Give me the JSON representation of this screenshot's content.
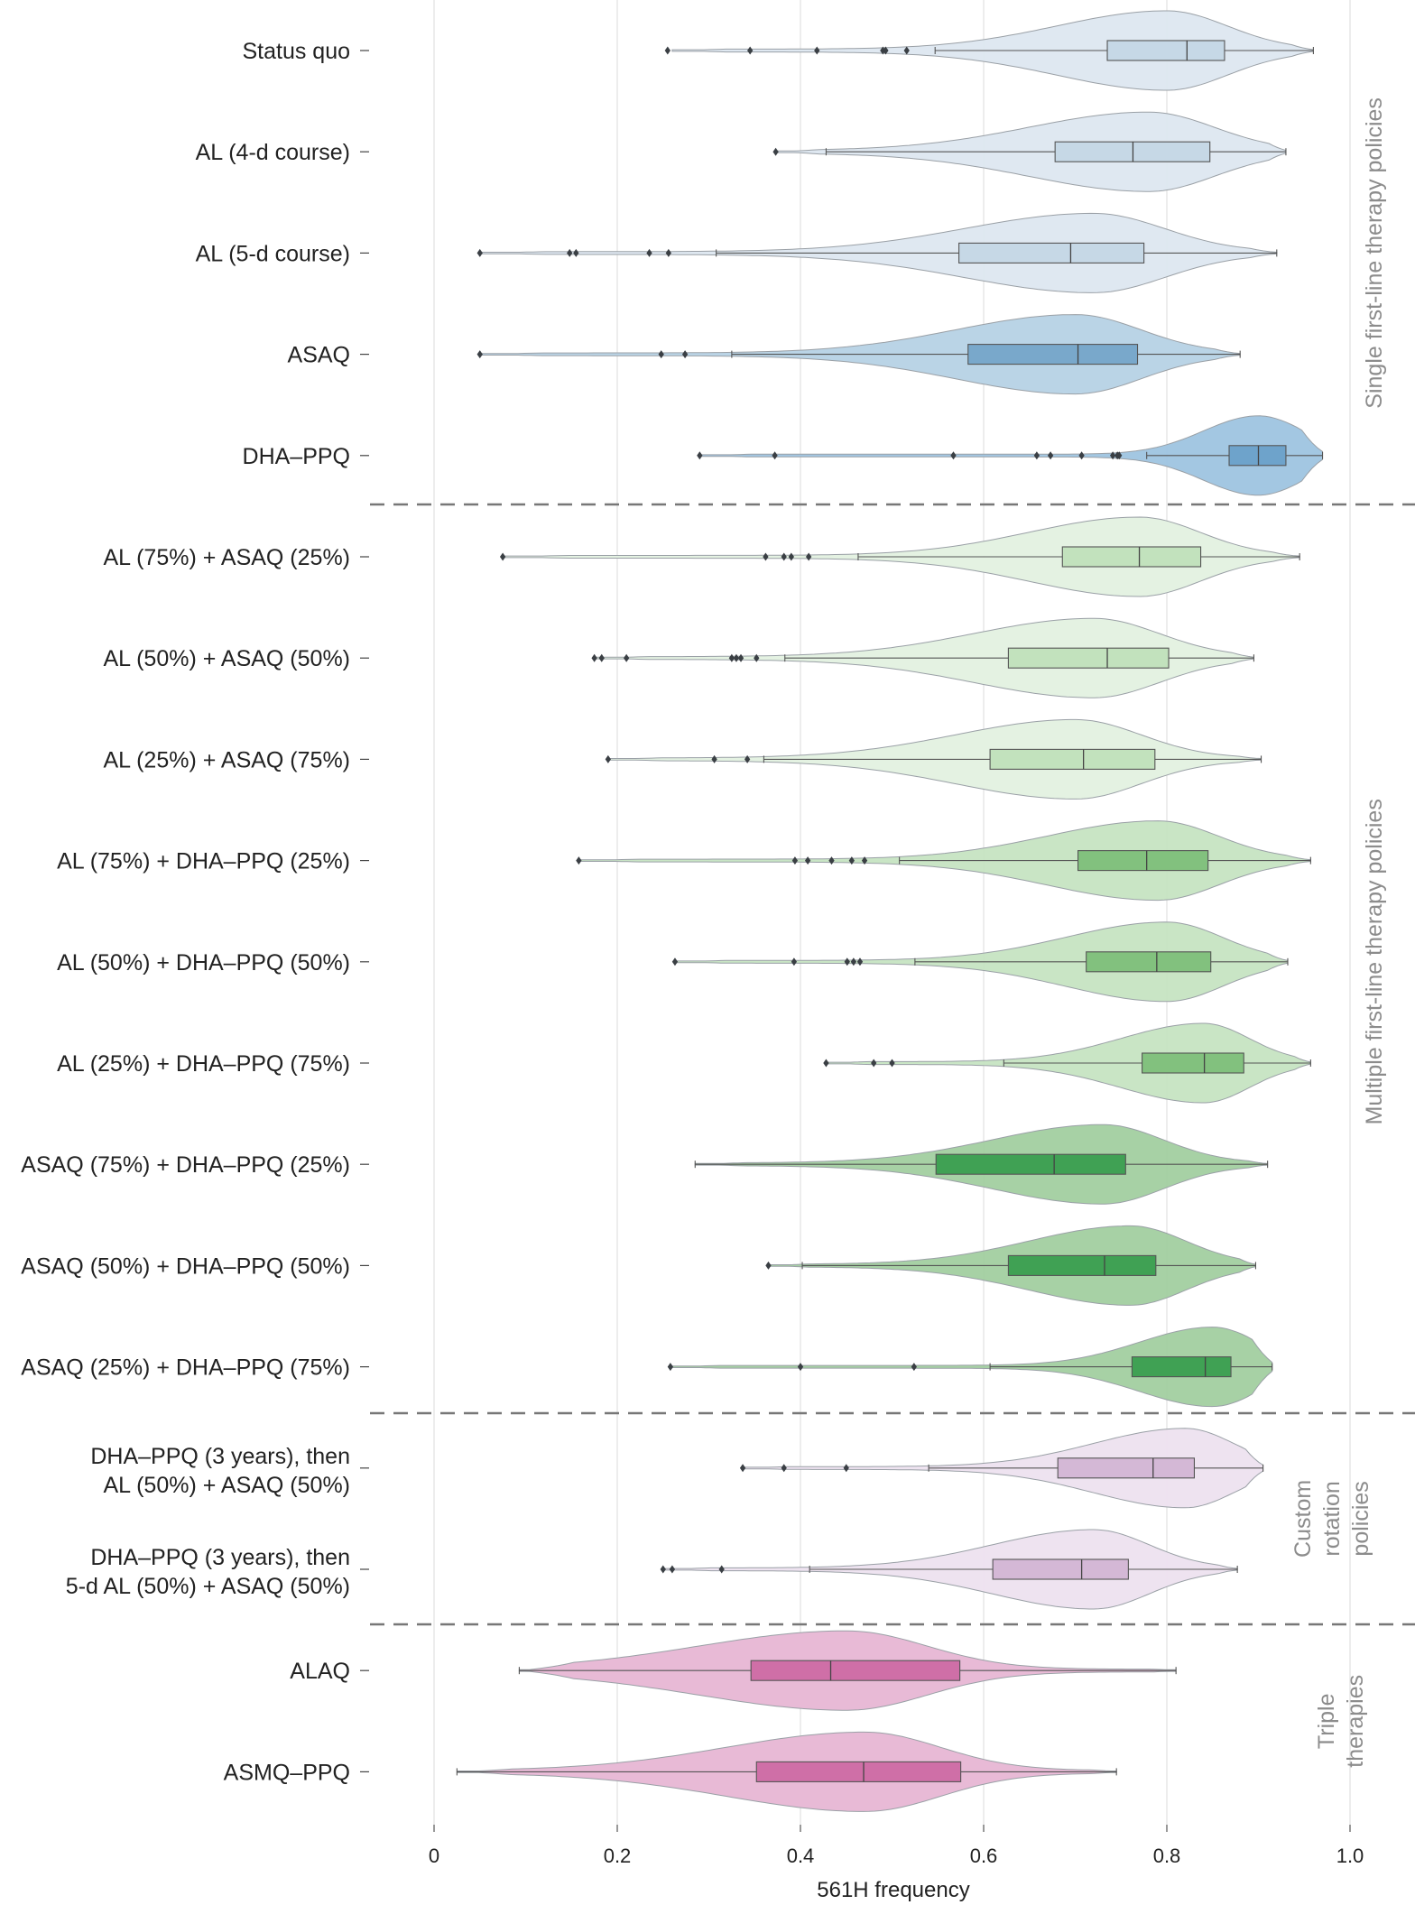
{
  "chart_data": {
    "type": "violin",
    "xlabel": "561H frequency",
    "xlim": [
      0,
      1.0
    ],
    "xticks": [
      0,
      0.2,
      0.4,
      0.6,
      0.8,
      1.0
    ],
    "xtick_labels": [
      "0",
      "0.2",
      "0.4",
      "0.6",
      "0.8",
      "1.0"
    ],
    "grid": "vertical",
    "groups": [
      {
        "name": "Single first-line therapy policies",
        "lines": [
          "Single first-line therapy policies"
        ],
        "first": 0,
        "last": 4
      },
      {
        "name": "Multiple first-line therapy policies",
        "lines": [
          "Multiple first-line therapy policies"
        ],
        "first": 5,
        "last": 13
      },
      {
        "name": "Custom rotation policies",
        "lines": [
          "Custom",
          "rotation",
          "policies"
        ],
        "first": 14,
        "last": 15
      },
      {
        "name": "Triple therapies",
        "lines": [
          "Triple",
          "therapies"
        ],
        "first": 16,
        "last": 17
      }
    ],
    "series": [
      {
        "label": [
          "Status quo"
        ],
        "fill": "#dde7f0",
        "box": "#c6d8e6",
        "min": 0.26,
        "q1": 0.735,
        "median": 0.822,
        "q3": 0.863,
        "max": 0.96,
        "whisker_low": 0.547,
        "outliers": [
          0.255,
          0.345,
          0.418,
          0.49,
          0.493,
          0.516
        ],
        "density_peak": 0.8,
        "spread": 0.12
      },
      {
        "label": [
          "AL (4-d course)"
        ],
        "fill": "#dde7f0",
        "box": "#c6d8e6",
        "min": 0.375,
        "q1": 0.678,
        "median": 0.763,
        "q3": 0.847,
        "max": 0.93,
        "whisker_low": 0.428,
        "outliers": [
          0.373
        ],
        "density_peak": 0.78,
        "spread": 0.13
      },
      {
        "label": [
          "AL (5-d course)"
        ],
        "fill": "#dde7f0",
        "box": "#c6d8e6",
        "min": 0.05,
        "q1": 0.573,
        "median": 0.695,
        "q3": 0.775,
        "max": 0.92,
        "whisker_low": 0.308,
        "outliers": [
          0.05,
          0.148,
          0.155,
          0.235,
          0.256
        ],
        "density_peak": 0.72,
        "spread": 0.14
      },
      {
        "label": [
          "ASAQ"
        ],
        "fill": "#b6d2e5",
        "box": "#79a8cb",
        "min": 0.05,
        "q1": 0.583,
        "median": 0.703,
        "q3": 0.768,
        "max": 0.88,
        "whisker_low": 0.325,
        "outliers": [
          0.05,
          0.248,
          0.274
        ],
        "density_peak": 0.7,
        "spread": 0.13
      },
      {
        "label": [
          "DHA–PPQ"
        ],
        "fill": "#9ec4e0",
        "box": "#6ea3cb",
        "min": 0.29,
        "q1": 0.868,
        "median": 0.9,
        "q3": 0.93,
        "max": 0.97,
        "whisker_low": 0.778,
        "outliers": [
          0.29,
          0.372,
          0.567,
          0.658,
          0.673,
          0.707,
          0.741,
          0.746,
          0.748
        ],
        "density_peak": 0.9,
        "spread": 0.06
      },
      {
        "label": [
          "AL (75%) + ASAQ (25%)"
        ],
        "fill": "#e3f1e0",
        "box": "#c2e2bd",
        "min": 0.075,
        "q1": 0.686,
        "median": 0.77,
        "q3": 0.837,
        "max": 0.945,
        "whisker_low": 0.463,
        "outliers": [
          0.075,
          0.362,
          0.382,
          0.39,
          0.409
        ],
        "density_peak": 0.77,
        "spread": 0.12
      },
      {
        "label": [
          "AL (50%) + ASAQ (50%)"
        ],
        "fill": "#e3f1e0",
        "box": "#c2e2bd",
        "min": 0.175,
        "q1": 0.627,
        "median": 0.735,
        "q3": 0.802,
        "max": 0.895,
        "whisker_low": 0.383,
        "outliers": [
          0.175,
          0.183,
          0.21,
          0.325,
          0.33,
          0.335,
          0.352
        ],
        "density_peak": 0.72,
        "spread": 0.13
      },
      {
        "label": [
          "AL (25%) + ASAQ (75%)"
        ],
        "fill": "#e3f1e0",
        "box": "#c2e2bd",
        "min": 0.19,
        "q1": 0.607,
        "median": 0.709,
        "q3": 0.787,
        "max": 0.903,
        "whisker_low": 0.36,
        "outliers": [
          0.19,
          0.306,
          0.342
        ],
        "density_peak": 0.7,
        "spread": 0.13
      },
      {
        "label": [
          "AL (75%) + DHA–PPQ (25%)"
        ],
        "fill": "#c6e4c2",
        "box": "#82c17e",
        "min": 0.158,
        "q1": 0.703,
        "median": 0.778,
        "q3": 0.845,
        "max": 0.957,
        "whisker_low": 0.508,
        "outliers": [
          0.158,
          0.394,
          0.408,
          0.434,
          0.456,
          0.47
        ],
        "density_peak": 0.79,
        "spread": 0.12
      },
      {
        "label": [
          "AL (50%) + DHA–PPQ (50%)"
        ],
        "fill": "#c6e4c2",
        "box": "#82c17e",
        "min": 0.263,
        "q1": 0.712,
        "median": 0.789,
        "q3": 0.848,
        "max": 0.932,
        "whisker_low": 0.525,
        "outliers": [
          0.263,
          0.393,
          0.451,
          0.458,
          0.465
        ],
        "density_peak": 0.8,
        "spread": 0.11
      },
      {
        "label": [
          "AL (25%) + DHA–PPQ (75%)"
        ],
        "fill": "#c6e4c2",
        "box": "#82c17e",
        "min": 0.428,
        "q1": 0.773,
        "median": 0.841,
        "q3": 0.884,
        "max": 0.957,
        "whisker_low": 0.622,
        "outliers": [
          0.428,
          0.48,
          0.5
        ],
        "density_peak": 0.84,
        "spread": 0.09
      },
      {
        "label": [
          "ASAQ (75%) + DHA–PPQ (25%)"
        ],
        "fill": "#a2cfa0",
        "box": "#40a154",
        "min": 0.285,
        "q1": 0.548,
        "median": 0.677,
        "q3": 0.755,
        "max": 0.91,
        "whisker_low": 0.285,
        "outliers": [],
        "density_peak": 0.73,
        "spread": 0.12
      },
      {
        "label": [
          "ASAQ (50%) + DHA–PPQ (50%)"
        ],
        "fill": "#a2cfa0",
        "box": "#40a154",
        "min": 0.365,
        "q1": 0.627,
        "median": 0.732,
        "q3": 0.788,
        "max": 0.897,
        "whisker_low": 0.402,
        "outliers": [
          0.365
        ],
        "density_peak": 0.76,
        "spread": 0.11
      },
      {
        "label": [
          "ASAQ (25%) + DHA–PPQ (75%)"
        ],
        "fill": "#a2cfa0",
        "box": "#40a154",
        "min": 0.258,
        "q1": 0.762,
        "median": 0.842,
        "q3": 0.87,
        "max": 0.915,
        "whisker_low": 0.607,
        "outliers": [
          0.258,
          0.4,
          0.524
        ],
        "density_peak": 0.85,
        "spread": 0.08
      },
      {
        "label": [
          "DHA–PPQ (3 years), then",
          "AL (50%) + ASAQ (50%)"
        ],
        "fill": "#ede2ef",
        "box": "#d4b8d6",
        "min": 0.337,
        "q1": 0.681,
        "median": 0.785,
        "q3": 0.83,
        "max": 0.905,
        "whisker_low": 0.54,
        "outliers": [
          0.337,
          0.382,
          0.45
        ],
        "density_peak": 0.82,
        "spread": 0.1
      },
      {
        "label": [
          "DHA–PPQ (3 years), then",
          "5-d AL (50%) + ASAQ (50%)"
        ],
        "fill": "#ede2ef",
        "box": "#d4b8d6",
        "min": 0.25,
        "q1": 0.61,
        "median": 0.707,
        "q3": 0.758,
        "max": 0.877,
        "whisker_low": 0.41,
        "outliers": [
          0.25,
          0.26,
          0.314
        ],
        "density_peak": 0.72,
        "spread": 0.11
      },
      {
        "label": [
          "ALAQ"
        ],
        "fill": "#e7b6d4",
        "box": "#cf6fa7",
        "min": 0.093,
        "q1": 0.346,
        "median": 0.433,
        "q3": 0.574,
        "max": 0.81,
        "whisker_low": 0.093,
        "outliers": [],
        "density_peak": 0.45,
        "spread": 0.16
      },
      {
        "label": [
          "ASMQ–PPQ"
        ],
        "fill": "#e7b6d4",
        "box": "#cf6fa7",
        "min": 0.025,
        "q1": 0.352,
        "median": 0.469,
        "q3": 0.575,
        "max": 0.745,
        "whisker_low": 0.025,
        "outliers": [],
        "density_peak": 0.47,
        "spread": 0.15
      }
    ]
  }
}
